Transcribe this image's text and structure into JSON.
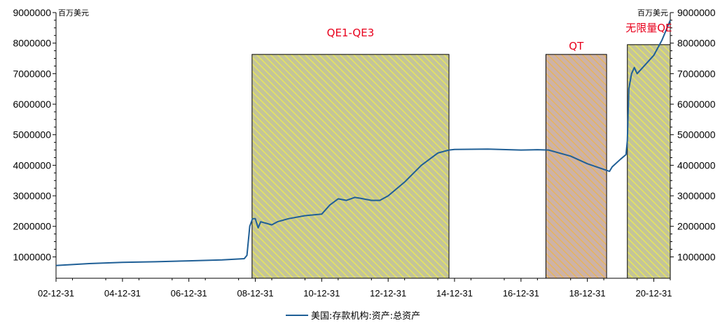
{
  "chart_data": {
    "type": "line",
    "units_left": "百万美元",
    "units_right": "百万美元",
    "x_ticks": [
      "02-12-31",
      "04-12-31",
      "06-12-31",
      "08-12-31",
      "10-12-31",
      "12-12-31",
      "14-12-31",
      "16-12-31",
      "18-12-31",
      "20-12-31"
    ],
    "y_ticks": [
      "1000000",
      "2000000",
      "3000000",
      "4000000",
      "5000000",
      "6000000",
      "7000000",
      "8000000",
      "9000000"
    ],
    "ylim": [
      300000,
      9000000
    ],
    "xlim": [
      "2002-12-31",
      "2021-06-30"
    ],
    "grid": false,
    "legend_position": "bottom",
    "series": [
      {
        "name": "美国:存款机构:资产:总资产",
        "color": "#1f5f96",
        "x": [
          "2002-12-31",
          "2003-12-31",
          "2004-12-31",
          "2005-12-31",
          "2006-12-31",
          "2007-12-31",
          "2008-08-31",
          "2008-09-30",
          "2008-10-31",
          "2008-11-30",
          "2008-12-31",
          "2009-01-31",
          "2009-02-28",
          "2009-04-30",
          "2009-06-30",
          "2009-08-31",
          "2009-12-31",
          "2010-06-30",
          "2010-12-31",
          "2011-03-31",
          "2011-06-30",
          "2011-09-30",
          "2011-12-31",
          "2012-03-31",
          "2012-06-30",
          "2012-09-30",
          "2012-12-31",
          "2013-06-30",
          "2013-12-31",
          "2014-06-30",
          "2014-10-31",
          "2014-12-31",
          "2015-12-31",
          "2016-12-31",
          "2017-06-30",
          "2017-10-31",
          "2018-06-30",
          "2018-12-31",
          "2019-08-31",
          "2019-09-30",
          "2019-12-31",
          "2020-02-29",
          "2020-03-15",
          "2020-03-31",
          "2020-04-30",
          "2020-05-31",
          "2020-06-30",
          "2020-08-31",
          "2020-12-31",
          "2021-03-31",
          "2021-06-30"
        ],
        "values": [
          720000,
          780000,
          820000,
          840000,
          870000,
          900000,
          940000,
          1050000,
          2000000,
          2250000,
          2250000,
          1950000,
          2150000,
          2100000,
          2050000,
          2150000,
          2250000,
          2350000,
          2400000,
          2700000,
          2900000,
          2850000,
          2950000,
          2900000,
          2850000,
          2850000,
          3000000,
          3450000,
          4000000,
          4400000,
          4500000,
          4520000,
          4530000,
          4500000,
          4510000,
          4500000,
          4300000,
          4050000,
          3800000,
          3950000,
          4200000,
          4350000,
          4800000,
          6500000,
          7000000,
          7200000,
          7000000,
          7200000,
          7600000,
          8100000,
          8750000
        ]
      }
    ],
    "shaded_regions": [
      {
        "label": "QE1-QE3",
        "start": "2008-11-25",
        "end": "2014-10-31",
        "top": 7630000,
        "fill": "#c4c49a",
        "hatch": "#e6e65c"
      },
      {
        "label": "QT",
        "start": "2017-10-01",
        "end": "2019-07-31",
        "top": 7630000,
        "fill": "#cdb2a8",
        "hatch": "#e6b45c"
      },
      {
        "label": "无限量QE",
        "start": "2020-03-15",
        "end": "2021-06-30",
        "top": 7950000,
        "fill": "#c4c49a",
        "hatch": "#e6e65c"
      }
    ]
  }
}
